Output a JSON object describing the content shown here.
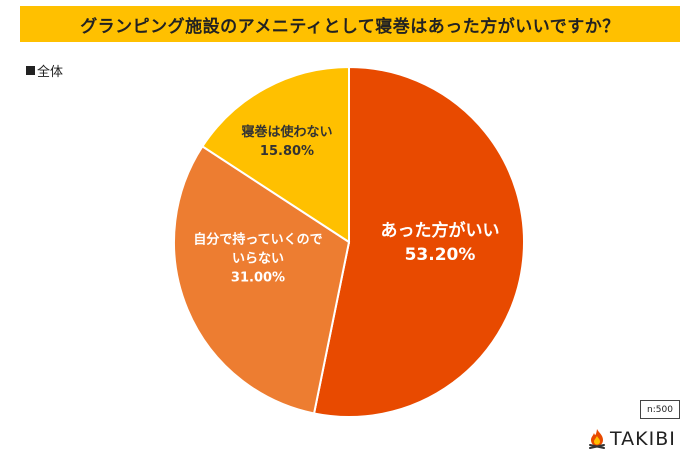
{
  "header": {
    "title": "グランピング施設のアメニティとして寝巻はあった方がいいですか？"
  },
  "legend": {
    "label": "全体"
  },
  "sample": {
    "label": "n:500"
  },
  "brand": {
    "name": "TAKIBI"
  },
  "colors": {
    "title_bg": "#FFC000",
    "slice_1": "#E84A00",
    "slice_2": "#ED7D31",
    "slice_3": "#FFC000"
  },
  "chart_data": {
    "type": "pie",
    "title": "グランピング施設のアメニティとして寝巻はあった方がいいですか？",
    "slices": [
      {
        "lines": [
          "あった方がいい"
        ],
        "pct_label": "53.20%",
        "value": 53.2,
        "color": "#E84A00",
        "text_color": "#ffffff"
      },
      {
        "lines": [
          "自分で持っていくので",
          "いらない"
        ],
        "pct_label": "31.00%",
        "value": 31.0,
        "color": "#ED7D31",
        "text_color": "#ffffff"
      },
      {
        "lines": [
          "寝巻は使わない"
        ],
        "pct_label": "15.80%",
        "value": 15.8,
        "color": "#FFC000",
        "text_color": "#333333"
      }
    ],
    "start_angle": "top",
    "direction": "clockwise",
    "legend": "top-left"
  }
}
